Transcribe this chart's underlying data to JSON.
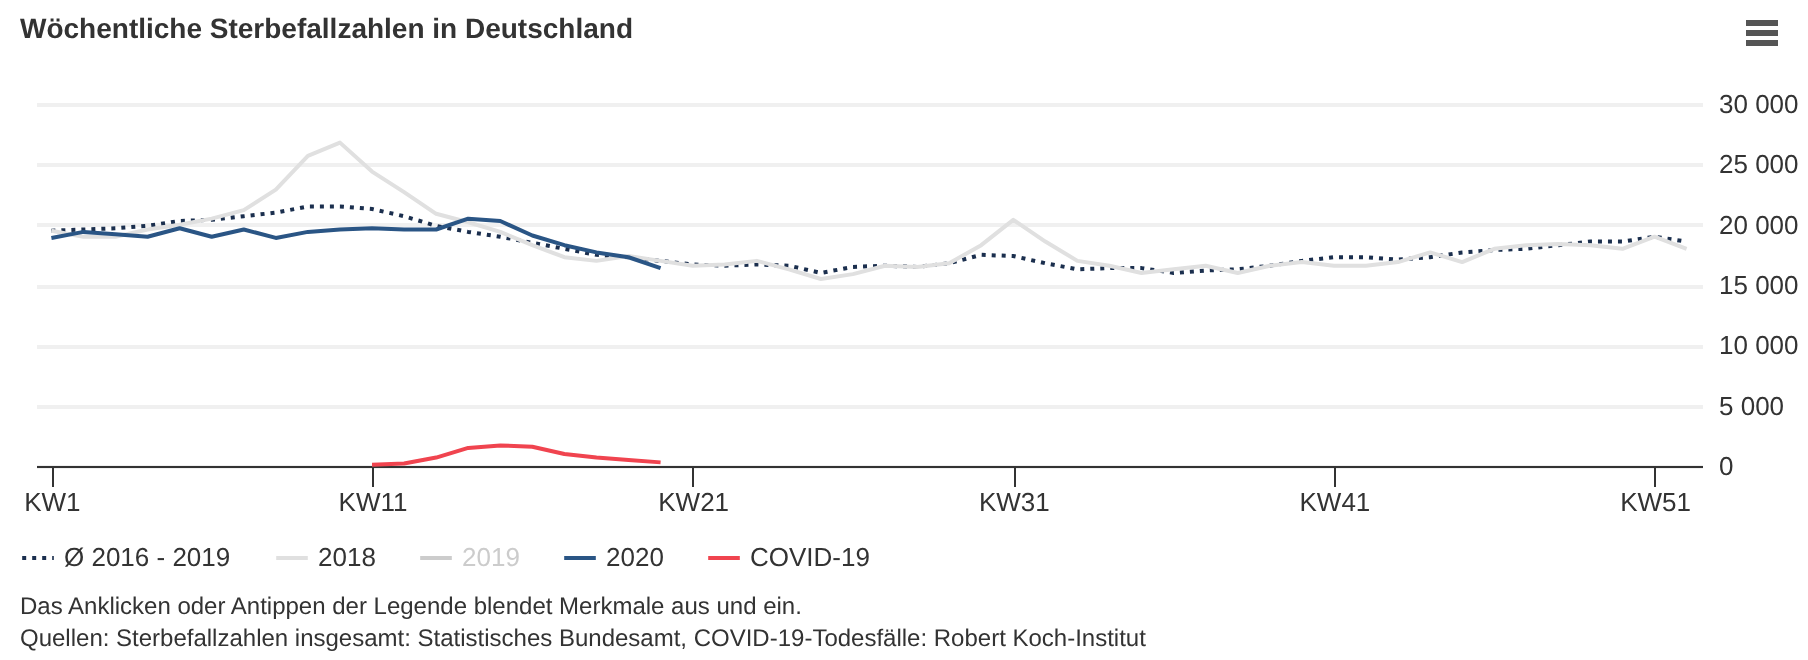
{
  "chart_data": {
    "type": "line",
    "title": "Wöchentliche Sterbefallzahlen in Deutschland",
    "annotations": [
      "Das Anklicken oder Antippen der Legende blendet Merkmale aus und ein.",
      "Quellen: Sterbefallzahlen insgesamt: Statistisches Bundesamt, COVID-19-Todesfälle: Robert Koch-Institut"
    ],
    "categories": [
      "KW1",
      null,
      null,
      null,
      null,
      null,
      null,
      null,
      null,
      null,
      "KW11",
      null,
      null,
      null,
      null,
      null,
      null,
      null,
      null,
      null,
      "KW21",
      null,
      null,
      null,
      null,
      null,
      null,
      null,
      null,
      null,
      "KW31",
      null,
      null,
      null,
      null,
      null,
      null,
      null,
      null,
      null,
      "KW41",
      null,
      null,
      null,
      null,
      null,
      null,
      null,
      null,
      null,
      "KW51",
      null
    ],
    "ylim": [
      0,
      30000
    ],
    "yticks": [
      {
        "value": 0,
        "label": "0"
      },
      {
        "value": 5000,
        "label": "5 000"
      },
      {
        "value": 10000,
        "label": "10 000"
      },
      {
        "value": 15000,
        "label": "15 000"
      },
      {
        "value": 20000,
        "label": "20 000"
      },
      {
        "value": 25000,
        "label": "25 000"
      },
      {
        "value": 30000,
        "label": "30 000"
      }
    ],
    "grid": "y",
    "legend": "bottom left",
    "series": [
      {
        "name": "Ø 2016 - 2019",
        "color": "#1b2f4e",
        "line_style": "dotted",
        "values": [
          19500,
          19600,
          19700,
          19900,
          20300,
          20400,
          20700,
          21000,
          21500,
          21500,
          21300,
          20700,
          19900,
          19400,
          19000,
          18500,
          18000,
          17500,
          17300,
          17000,
          16700,
          16600,
          16700,
          16600,
          16000,
          16500,
          16600,
          16500,
          16800,
          17500,
          17400,
          16800,
          16300,
          16400,
          16400,
          16000,
          16200,
          16300,
          16600,
          17000,
          17300,
          17300,
          17100,
          17300,
          17700,
          17900,
          18000,
          18300,
          18600,
          18600,
          19000,
          18600
        ]
      },
      {
        "name": "2018",
        "color": "#e0e0e0",
        "values": [
          19500,
          19000,
          19000,
          19600,
          20000,
          20500,
          21200,
          22900,
          25700,
          26800,
          24400,
          22700,
          20900,
          20200,
          19400,
          18300,
          17300,
          17000,
          17400,
          17000,
          16600,
          16700,
          17000,
          16300,
          15500,
          15900,
          16600,
          16500,
          16800,
          18300,
          20400,
          18600,
          17000,
          16600,
          16000,
          16300,
          16600,
          16000,
          16600,
          16900,
          16600,
          16600,
          16900,
          17700,
          16900,
          18000,
          18300,
          18400,
          18300,
          18000,
          19000,
          18000
        ]
      },
      {
        "name": "2019",
        "color": "#cccccc",
        "values": [
          null,
          null,
          null,
          null,
          null,
          null,
          null,
          null,
          null,
          null,
          null,
          null,
          null,
          null,
          null,
          null,
          null,
          null,
          null,
          null,
          null,
          null,
          null,
          null,
          null,
          null,
          null,
          null,
          null,
          null,
          null,
          null,
          null,
          null,
          null,
          null,
          null,
          null,
          null,
          null,
          null,
          null,
          null,
          null,
          null,
          null,
          null,
          null,
          null,
          null,
          null,
          null
        ]
      },
      {
        "name": "2020",
        "color": "#2a5585",
        "values": [
          18900,
          19400,
          19200,
          19000,
          19700,
          19000,
          19600,
          18900,
          19400,
          19600,
          19700,
          19600,
          19600,
          20500,
          20300,
          19100,
          18300,
          17700,
          17300,
          16400,
          null,
          null,
          null,
          null,
          null,
          null,
          null,
          null,
          null,
          null,
          null,
          null,
          null,
          null,
          null,
          null,
          null,
          null,
          null,
          null,
          null,
          null,
          null,
          null,
          null,
          null,
          null,
          null,
          null,
          null,
          null,
          null
        ]
      },
      {
        "name": "COVID-19",
        "color": "#f0444f",
        "values": [
          null,
          null,
          null,
          null,
          null,
          null,
          null,
          null,
          null,
          null,
          100,
          200,
          700,
          1500,
          1700,
          1600,
          1000,
          700,
          500,
          300,
          null,
          null,
          null,
          null,
          null,
          null,
          null,
          null,
          null,
          null,
          null,
          null,
          null,
          null,
          null,
          null,
          null,
          null,
          null,
          null,
          null,
          null,
          null,
          null,
          null,
          null,
          null,
          null,
          null,
          null,
          null,
          null
        ]
      }
    ]
  }
}
